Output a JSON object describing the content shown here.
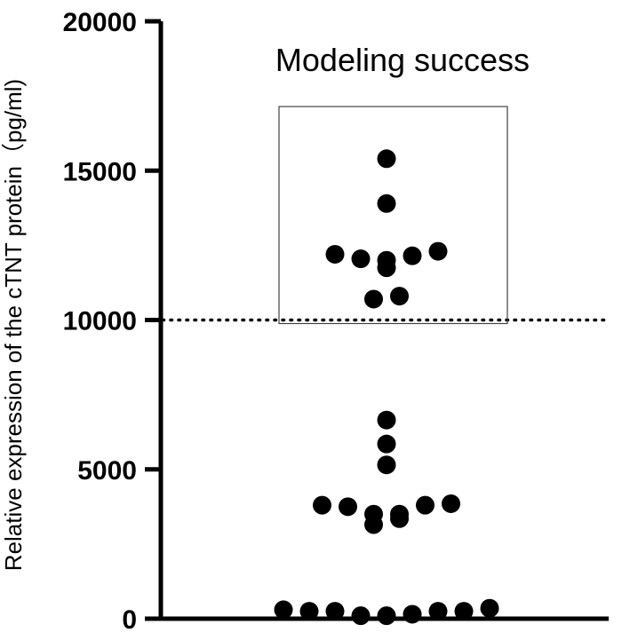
{
  "chart_data": {
    "type": "scatter",
    "ylabel": "Relative expression of the cTNT protein（pg/ml)",
    "ylim": [
      0,
      20000
    ],
    "yticks": [
      0,
      5000,
      10000,
      15000,
      20000
    ],
    "threshold": 10000,
    "annotation": "Modeling success",
    "points": [
      15400,
      13900,
      12150,
      12050,
      12000,
      11750,
      12200,
      12300,
      10700,
      10800,
      6650,
      5850,
      5150,
      3800,
      3500,
      3500,
      3750,
      3800,
      3850,
      3150,
      3350,
      250,
      350,
      250,
      300,
      100,
      250,
      150,
      250,
      100
    ]
  }
}
